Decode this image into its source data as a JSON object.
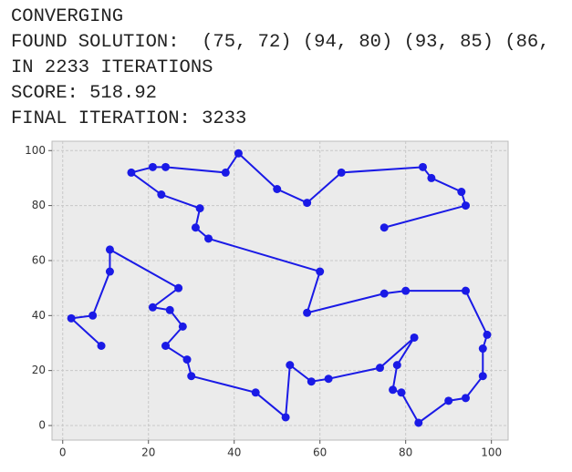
{
  "output_lines": [
    "CONVERGING",
    "FOUND SOLUTION:  (75, 72) (94, 80) (93, 85) (86,",
    "IN 2233 ITERATIONS",
    "SCORE: 518.92",
    "FINAL ITERATION: 3233"
  ],
  "chart_data": {
    "type": "line",
    "x": [
      75,
      94,
      93,
      86,
      84,
      65,
      57,
      50,
      41,
      38,
      24,
      21,
      16,
      23,
      32,
      31,
      34,
      60,
      57,
      75,
      80,
      94,
      99,
      98,
      98,
      94,
      90,
      83,
      79,
      77,
      78,
      82,
      74,
      62,
      58,
      53,
      52,
      45,
      30,
      29,
      24,
      28,
      25,
      21,
      27,
      11,
      11,
      7,
      2,
      9
    ],
    "series": [
      {
        "color": "#1a1ae6",
        "values": [
          72,
          80,
          85,
          90,
          94,
          92,
          81,
          86,
          99,
          92,
          94,
          94,
          92,
          84,
          79,
          72,
          68,
          56,
          41,
          48,
          49,
          49,
          33,
          28,
          18,
          10,
          9,
          1,
          12,
          13,
          22,
          32,
          21,
          17,
          16,
          22,
          3,
          12,
          18,
          24,
          29,
          36,
          42,
          43,
          50,
          64,
          56,
          40,
          39,
          29
        ]
      }
    ],
    "xlim": [
      -2.5,
      103.9
    ],
    "ylim": [
      -5.3,
      103.4
    ],
    "xticks": [
      0,
      20,
      40,
      60,
      80,
      100
    ],
    "yticks": [
      0,
      20,
      40,
      60,
      80,
      100
    ],
    "grid": true
  }
}
